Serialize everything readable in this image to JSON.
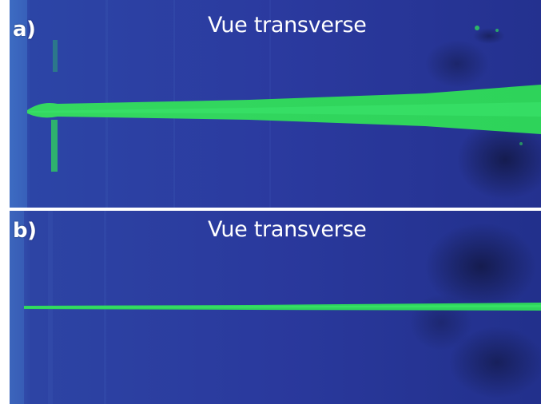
{
  "panels": [
    {
      "label": "a)",
      "title": "Vue transverse"
    },
    {
      "label": "b)",
      "title": "Vue transverse"
    }
  ],
  "colors": {
    "background_blue": "#2a3a9c",
    "background_light": "#3b5fb8",
    "beam_green": "#2fd65c",
    "dark_patch": "#141a4a"
  }
}
